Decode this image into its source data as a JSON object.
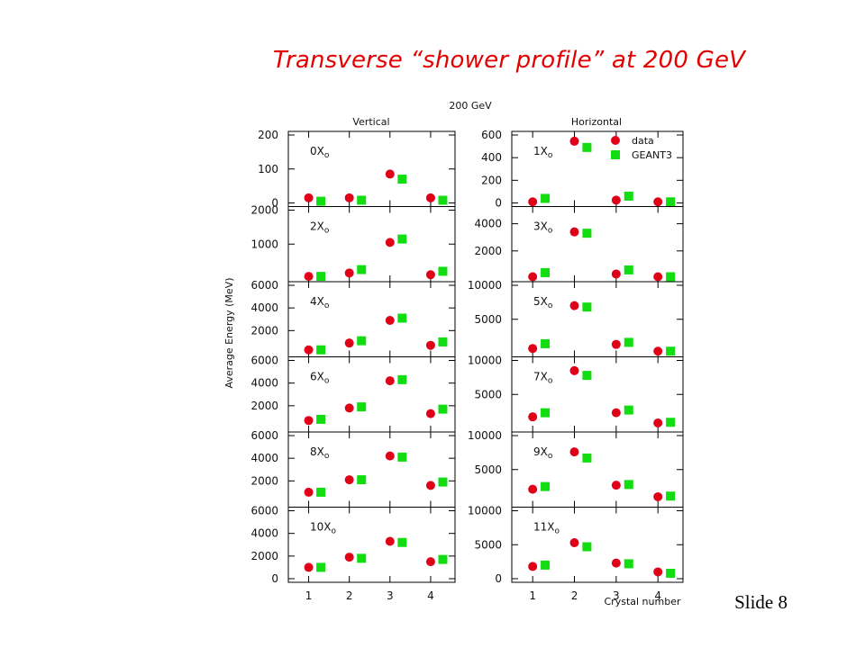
{
  "slide": {
    "title": "Transverse “shower profile” at 200 GeV",
    "number": "Slide 8"
  },
  "colors": {
    "title": "#e30000",
    "data_marker": "#e00018",
    "geant3_marker": "#11dd11",
    "frame": "#000000"
  },
  "chart_data": {
    "type": "scatter",
    "title": "200 GeV",
    "column_titles": [
      "Vertical",
      "Horizontal"
    ],
    "ylabel": "Average Energy (MeV)",
    "xlabel": "Crystal number",
    "x_ticks": [
      1,
      2,
      3,
      4
    ],
    "legend": {
      "placement": "top-right of first horizontal panel",
      "entries": [
        {
          "name": "data",
          "marker": "circle",
          "color": "#e00018"
        },
        {
          "name": "GEANT3",
          "marker": "square",
          "color": "#11dd11"
        }
      ]
    },
    "panels": [
      {
        "column": "Vertical",
        "depth": "0X",
        "depth_sub": "o",
        "ylim": [
          0,
          200
        ],
        "yticks": [
          0,
          100,
          200
        ],
        "series": [
          {
            "name": "data",
            "x": [
              1,
              2,
              3,
              4
            ],
            "y": [
              15,
              15,
              85,
              15
            ]
          },
          {
            "name": "GEANT3",
            "x": [
              1.3,
              2.3,
              3.3,
              4.3
            ],
            "y": [
              5,
              8,
              70,
              8
            ]
          }
        ]
      },
      {
        "column": "Vertical",
        "depth": "2X",
        "depth_sub": "o",
        "ylim": [
          0,
          2000
        ],
        "yticks": [
          1000,
          2000
        ],
        "series": [
          {
            "name": "data",
            "x": [
              1,
              2,
              3,
              4
            ],
            "y": [
              50,
              150,
              1050,
              100
            ]
          },
          {
            "name": "GEANT3",
            "x": [
              1.3,
              2.3,
              3.3,
              4.3
            ],
            "y": [
              50,
              250,
              1150,
              200
            ]
          }
        ]
      },
      {
        "column": "Vertical",
        "depth": "4X",
        "depth_sub": "o",
        "ylim": [
          0,
          6000
        ],
        "yticks": [
          2000,
          4000,
          6000
        ],
        "series": [
          {
            "name": "data",
            "x": [
              1,
              2,
              3,
              4
            ],
            "y": [
              300,
              900,
              2900,
              700
            ]
          },
          {
            "name": "GEANT3",
            "x": [
              1.3,
              2.3,
              3.3,
              4.3
            ],
            "y": [
              300,
              1100,
              3100,
              1000
            ]
          }
        ]
      },
      {
        "column": "Vertical",
        "depth": "6X",
        "depth_sub": "o",
        "ylim": [
          0,
          6000
        ],
        "yticks": [
          2000,
          4000,
          6000
        ],
        "series": [
          {
            "name": "data",
            "x": [
              1,
              2,
              3,
              4
            ],
            "y": [
              700,
              1800,
              4200,
              1300
            ]
          },
          {
            "name": "GEANT3",
            "x": [
              1.3,
              2.3,
              3.3,
              4.3
            ],
            "y": [
              800,
              1900,
              4300,
              1700
            ]
          }
        ]
      },
      {
        "column": "Vertical",
        "depth": "8X",
        "depth_sub": "o",
        "ylim": [
          0,
          6000
        ],
        "yticks": [
          2000,
          4000,
          6000
        ],
        "series": [
          {
            "name": "data",
            "x": [
              1,
              2,
              3,
              4
            ],
            "y": [
              1000,
              2100,
              4200,
              1600
            ]
          },
          {
            "name": "GEANT3",
            "x": [
              1.3,
              2.3,
              3.3,
              4.3
            ],
            "y": [
              1000,
              2100,
              4100,
              1900
            ]
          }
        ]
      },
      {
        "column": "Vertical",
        "depth": "10X",
        "depth_sub": "o",
        "ylim": [
          0,
          6000
        ],
        "yticks": [
          0,
          2000,
          4000,
          6000
        ],
        "series": [
          {
            "name": "data",
            "x": [
              1,
              2,
              3,
              4
            ],
            "y": [
              1000,
              1900,
              3300,
              1500
            ]
          },
          {
            "name": "GEANT3",
            "x": [
              1.3,
              2.3,
              3.3,
              4.3
            ],
            "y": [
              1000,
              1800,
              3200,
              1700
            ]
          }
        ]
      },
      {
        "column": "Horizontal",
        "depth": "1X",
        "depth_sub": "o",
        "ylim": [
          0,
          600
        ],
        "yticks": [
          0,
          200,
          400,
          600
        ],
        "series": [
          {
            "name": "data",
            "x": [
              1,
              2,
              3,
              4
            ],
            "y": [
              10,
              545,
              25,
              10
            ]
          },
          {
            "name": "GEANT3",
            "x": [
              1.3,
              2.3,
              3.3,
              4.3
            ],
            "y": [
              40,
              490,
              60,
              10
            ]
          }
        ]
      },
      {
        "column": "Horizontal",
        "depth": "3X",
        "depth_sub": "o",
        "ylim": [
          0,
          5000
        ],
        "yticks": [
          2000,
          4000
        ],
        "series": [
          {
            "name": "data",
            "x": [
              1,
              2,
              3,
              4
            ],
            "y": [
              100,
              3400,
              300,
              100
            ]
          },
          {
            "name": "GEANT3",
            "x": [
              1.3,
              2.3,
              3.3,
              4.3
            ],
            "y": [
              400,
              3300,
              600,
              100
            ]
          }
        ]
      },
      {
        "column": "Horizontal",
        "depth": "5X",
        "depth_sub": "o",
        "ylim": [
          0,
          10000
        ],
        "yticks": [
          5000,
          10000
        ],
        "series": [
          {
            "name": "data",
            "x": [
              1,
              2,
              3,
              4
            ],
            "y": [
              700,
              7000,
              1300,
              300
            ]
          },
          {
            "name": "GEANT3",
            "x": [
              1.3,
              2.3,
              3.3,
              4.3
            ],
            "y": [
              1400,
              6800,
              1600,
              300
            ]
          }
        ]
      },
      {
        "column": "Horizontal",
        "depth": "7X",
        "depth_sub": "o",
        "ylim": [
          0,
          10000
        ],
        "yticks": [
          5000,
          10000
        ],
        "series": [
          {
            "name": "data",
            "x": [
              1,
              2,
              3,
              4
            ],
            "y": [
              1700,
              8500,
              2300,
              800
            ]
          },
          {
            "name": "GEANT3",
            "x": [
              1.3,
              2.3,
              3.3,
              4.3
            ],
            "y": [
              2300,
              7800,
              2700,
              900
            ]
          }
        ]
      },
      {
        "column": "Horizontal",
        "depth": "9X",
        "depth_sub": "o",
        "ylim": [
          0,
          10000
        ],
        "yticks": [
          5000,
          10000
        ],
        "series": [
          {
            "name": "data",
            "x": [
              1,
              2,
              3,
              4
            ],
            "y": [
              2100,
              7600,
              2700,
              1000
            ]
          },
          {
            "name": "GEANT3",
            "x": [
              1.3,
              2.3,
              3.3,
              4.3
            ],
            "y": [
              2500,
              6700,
              2800,
              1100
            ]
          }
        ]
      },
      {
        "column": "Horizontal",
        "depth": "11X",
        "depth_sub": "o",
        "ylim": [
          0,
          10000
        ],
        "yticks": [
          0,
          5000,
          10000
        ],
        "series": [
          {
            "name": "data",
            "x": [
              1,
              2,
              3,
              4
            ],
            "y": [
              1800,
              5300,
              2300,
              1000
            ]
          },
          {
            "name": "GEANT3",
            "x": [
              1.3,
              2.3,
              3.3,
              4.3
            ],
            "y": [
              2000,
              4700,
              2200,
              800
            ]
          }
        ]
      }
    ]
  }
}
